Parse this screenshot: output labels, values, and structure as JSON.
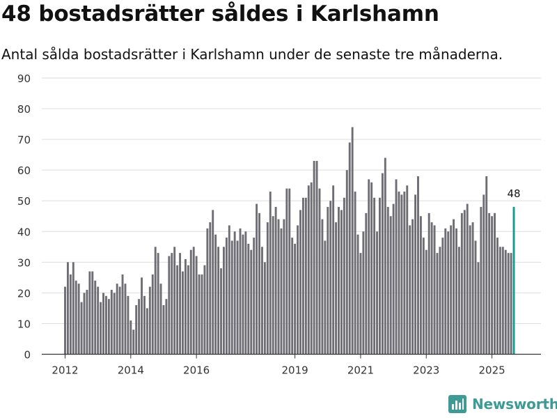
{
  "title": "48 bostadsrätter såldes i Karlshamn",
  "subtitle": "Antal sålda bostadsrätter i Karlshamn under de senaste tre månaderna.",
  "brand": {
    "name": "Newsworthy",
    "color": "#3e9a94"
  },
  "colors": {
    "bar": "#6e6d73",
    "highlight": "#16998f",
    "grid": "#dddddd",
    "axis": "#333333"
  },
  "chart_data": {
    "type": "bar",
    "title": "48 bostadsrätter såldes i Karlshamn",
    "xlabel": "",
    "ylabel": "",
    "ylim": [
      0,
      90
    ],
    "yticks": [
      0,
      10,
      20,
      30,
      40,
      50,
      60,
      70,
      80,
      90
    ],
    "x_start": "2012-01",
    "xticks": [
      {
        "label": "2012",
        "index": 0
      },
      {
        "label": "2014",
        "index": 24
      },
      {
        "label": "2016",
        "index": 48
      },
      {
        "label": "2019",
        "index": 84
      },
      {
        "label": "2021",
        "index": 108
      },
      {
        "label": "2023",
        "index": 132
      },
      {
        "label": "2025",
        "index": 156
      }
    ],
    "values": [
      22,
      30,
      26,
      30,
      24,
      23,
      17,
      20,
      21,
      27,
      27,
      24,
      22,
      17,
      20,
      19,
      18,
      21,
      20,
      23,
      22,
      26,
      23,
      19,
      11,
      8,
      16,
      18,
      25,
      19,
      15,
      22,
      26,
      35,
      33,
      23,
      16,
      18,
      32,
      33,
      35,
      29,
      33,
      27,
      31,
      29,
      34,
      35,
      32,
      26,
      26,
      29,
      41,
      43,
      47,
      39,
      35,
      28,
      35,
      38,
      42,
      37,
      40,
      37,
      41,
      39,
      40,
      36,
      34,
      38,
      49,
      46,
      35,
      30,
      43,
      53,
      45,
      48,
      44,
      41,
      44,
      54,
      54,
      38,
      36,
      42,
      47,
      51,
      51,
      55,
      56,
      63,
      63,
      54,
      44,
      37,
      48,
      50,
      55,
      43,
      48,
      47,
      51,
      60,
      69,
      74,
      53,
      39,
      33,
      40,
      46,
      57,
      56,
      51,
      40,
      51,
      59,
      64,
      48,
      45,
      49,
      57,
      53,
      52,
      53,
      55,
      42,
      44,
      52,
      58,
      45,
      38,
      34,
      46,
      43,
      42,
      33,
      35,
      38,
      41,
      40,
      42,
      44,
      41,
      35,
      46,
      47,
      49,
      42,
      43,
      37,
      30,
      48,
      52,
      58,
      46,
      45,
      46,
      38,
      35,
      35,
      34,
      33,
      33,
      48
    ],
    "highlight_label": "48"
  }
}
